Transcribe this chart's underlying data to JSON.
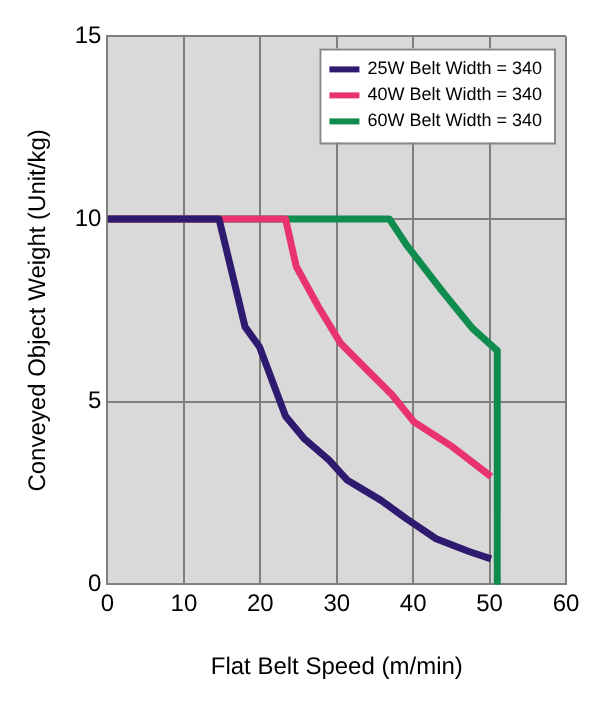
{
  "chart_data": {
    "type": "line",
    "xlabel": "Flat Belt Speed (m/min)",
    "ylabel": "Conveyed Object Weight (Unit/kg)",
    "series": [
      {
        "name": "25W Belt Width = 340",
        "color": "#2e1a6e",
        "x": [
          0,
          14.6,
          18,
          19.9,
          23.3,
          25.7,
          29,
          31.4,
          35.8,
          39.1,
          43,
          47.3,
          50.2
        ],
        "values": [
          10,
          10,
          7.05,
          6.5,
          4.6,
          4,
          3.4,
          2.85,
          2.3,
          1.8,
          1.25,
          0.9,
          0.7
        ]
      },
      {
        "name": "40W Belt Width = 340",
        "color": "#e8336e",
        "x": [
          0,
          23.3,
          24.7,
          27.6,
          30.5,
          34.3,
          37.2,
          40.1,
          44.9,
          50.2
        ],
        "values": [
          10,
          10,
          8.7,
          7.6,
          6.6,
          5.8,
          5.2,
          4.45,
          3.8,
          2.95
        ]
      },
      {
        "name": "60W Belt Width = 340",
        "color": "#0f8c4e",
        "x": [
          0,
          36.9,
          39.1,
          43.9,
          47.8,
          51,
          51
        ],
        "values": [
          10,
          10,
          9.3,
          8,
          7,
          6.4,
          0
        ]
      }
    ],
    "xlim": [
      0,
      60
    ],
    "xticks": [
      0,
      10,
      20,
      30,
      40,
      50,
      60
    ],
    "ylim": [
      0,
      15
    ],
    "yticks": [
      0,
      5,
      10,
      15
    ],
    "grid": true,
    "legend": "top right",
    "marker": "none",
    "line_style": "solid"
  }
}
